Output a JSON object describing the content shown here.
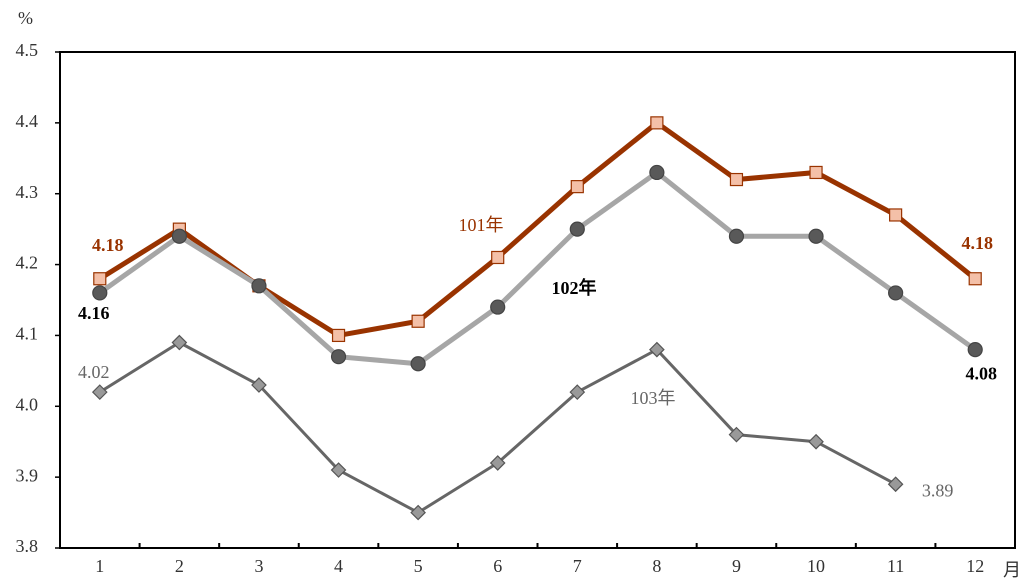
{
  "chart_data": {
    "type": "line",
    "y_unit": "%",
    "x_unit": "月",
    "categories": [
      "1",
      "2",
      "3",
      "4",
      "5",
      "6",
      "7",
      "8",
      "9",
      "10",
      "11",
      "12"
    ],
    "series": [
      {
        "name": "101年",
        "color": "#993300",
        "marker": "square",
        "marker_color": "#f4c0a8",
        "values": [
          4.18,
          4.25,
          4.17,
          4.1,
          4.12,
          4.21,
          4.31,
          4.4,
          4.32,
          4.33,
          4.27,
          4.18
        ]
      },
      {
        "name": "102年",
        "color": "#a6a6a6",
        "marker": "circle",
        "marker_color": "#595959",
        "values": [
          4.16,
          4.24,
          4.17,
          4.07,
          4.06,
          4.14,
          4.25,
          4.33,
          4.24,
          4.24,
          4.16,
          4.08
        ]
      },
      {
        "name": "103年",
        "color": "#666666",
        "marker": "diamond",
        "marker_color": "#999999",
        "values": [
          4.02,
          4.09,
          4.03,
          3.91,
          3.85,
          3.92,
          4.02,
          4.08,
          3.96,
          3.95,
          3.89,
          null
        ]
      }
    ],
    "ylim": [
      3.8,
      4.5
    ],
    "yticks": [
      3.8,
      3.9,
      {
        "value": 4,
        "label": "4.0"
      },
      4.1,
      4.2,
      4.3,
      4.4,
      4.5
    ],
    "grid": false
  }
}
